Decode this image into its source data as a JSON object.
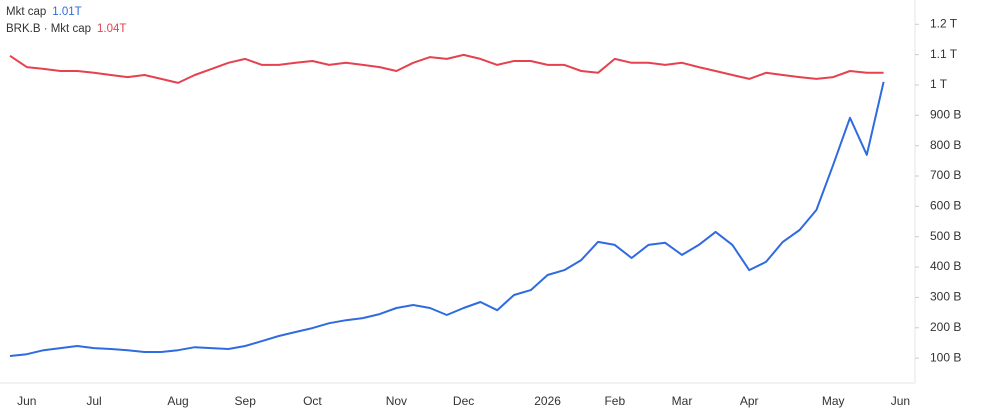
{
  "chart_data": {
    "type": "line",
    "categories": [
      null,
      "Jun",
      null,
      null,
      null,
      "Jul",
      null,
      null,
      null,
      null,
      "Aug",
      null,
      null,
      null,
      "Sep",
      null,
      null,
      null,
      "Oct",
      null,
      null,
      null,
      null,
      "Nov",
      null,
      null,
      null,
      "Dec",
      null,
      null,
      null,
      null,
      "2026",
      null,
      null,
      null,
      "Feb",
      null,
      null,
      null,
      "Mar",
      null,
      null,
      null,
      "Apr",
      null,
      null,
      null,
      null,
      "May",
      null,
      null,
      null,
      "Jun"
    ],
    "series": [
      {
        "name": "Mkt cap",
        "legend_value": "1.01T",
        "color": "#2f6be0",
        "values": [
          107,
          113,
          126,
          133,
          140,
          133,
          130,
          126,
          120,
          120,
          126,
          136,
          133,
          130,
          140,
          156,
          173,
          186,
          199,
          215,
          225,
          232,
          245,
          265,
          275,
          265,
          242,
          265,
          285,
          258,
          308,
          324,
          374,
          390,
          423,
          483,
          473,
          430,
          473,
          480,
          440,
          473,
          516,
          473,
          390,
          417,
          483,
          522,
          588,
          737,
          892,
          770,
          1010,
          null
        ]
      },
      {
        "name": "BRK.B · Mkt cap",
        "legend_value": "1.04T",
        "color": "#e5414f",
        "values": [
          1096,
          1059,
          1053,
          1046,
          1046,
          1040,
          1033,
          1026,
          1033,
          1020,
          1007,
          1033,
          1053,
          1073,
          1086,
          1066,
          1066,
          1073,
          1079,
          1066,
          1073,
          1066,
          1059,
          1046,
          1073,
          1092,
          1086,
          1099,
          1086,
          1066,
          1079,
          1079,
          1066,
          1066,
          1046,
          1040,
          1086,
          1073,
          1073,
          1066,
          1073,
          1059,
          1046,
          1033,
          1020,
          1040,
          1033,
          1026,
          1020,
          1026,
          1046,
          1040,
          1040,
          null
        ]
      }
    ],
    "ylim": [
      18,
      1280
    ],
    "yticks": [
      {
        "value": 100,
        "label": "100 B"
      },
      {
        "value": 200,
        "label": "200 B"
      },
      {
        "value": 300,
        "label": "300 B"
      },
      {
        "value": 400,
        "label": "400 B"
      },
      {
        "value": 500,
        "label": "500 B"
      },
      {
        "value": 600,
        "label": "600 B"
      },
      {
        "value": 700,
        "label": "700 B"
      },
      {
        "value": 800,
        "label": "800 B"
      },
      {
        "value": 900,
        "label": "900 B"
      },
      {
        "value": 1000,
        "label": "1 T"
      },
      {
        "value": 1100,
        "label": "1.1 T"
      },
      {
        "value": 1200,
        "label": "1.2 T"
      }
    ],
    "grid": false,
    "legend": "upper left"
  }
}
